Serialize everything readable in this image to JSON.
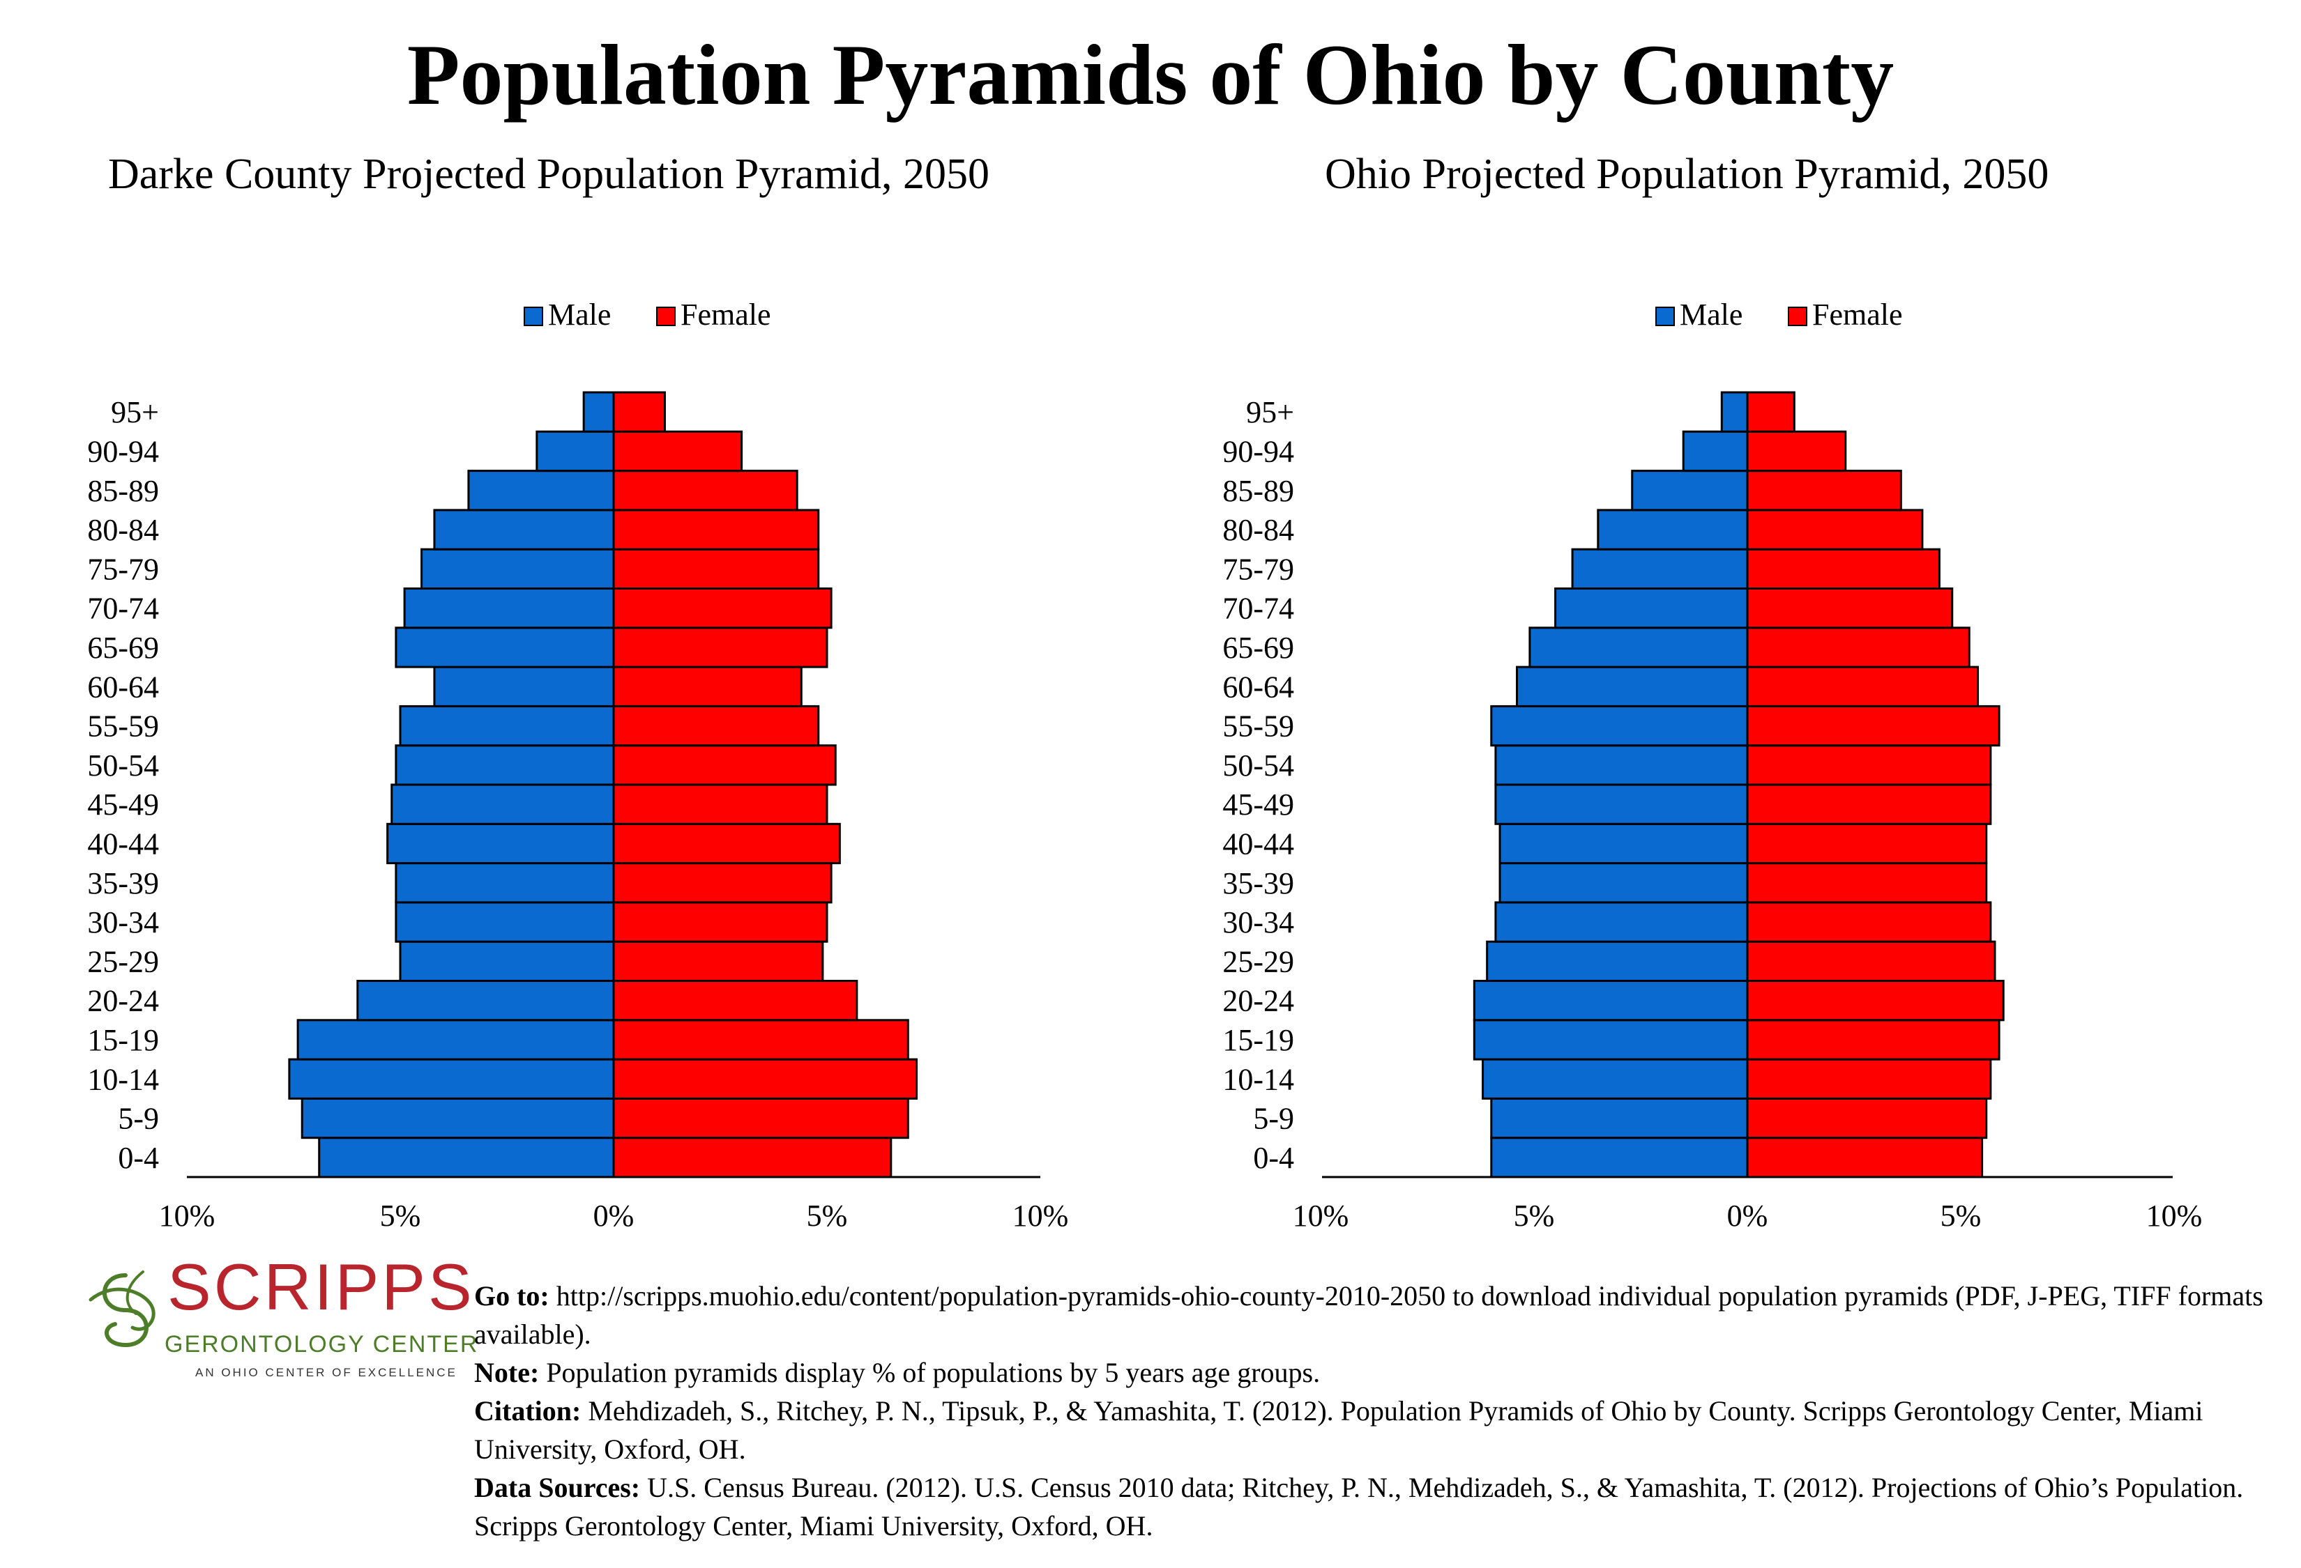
{
  "main_title": "Population Pyramids of Ohio by County",
  "colors": {
    "male": "#0a6ad0",
    "female": "#ff0000"
  },
  "chart_data": [
    {
      "type": "bar",
      "orientation": "horizontal-pyramid",
      "title": "Darke County Projected Population Pyramid, 2050",
      "categories": [
        "0-4",
        "5-9",
        "10-14",
        "15-19",
        "20-24",
        "25-29",
        "30-34",
        "35-39",
        "40-44",
        "45-49",
        "50-54",
        "55-59",
        "60-64",
        "65-69",
        "70-74",
        "75-79",
        "80-84",
        "85-89",
        "90-94",
        "95+"
      ],
      "series": [
        {
          "name": "Male",
          "values": [
            6.9,
            7.3,
            7.6,
            7.4,
            6.0,
            5.0,
            5.1,
            5.1,
            5.3,
            5.2,
            5.1,
            5.0,
            4.2,
            5.1,
            4.9,
            4.5,
            4.2,
            3.4,
            1.8,
            0.7
          ]
        },
        {
          "name": "Female",
          "values": [
            6.5,
            6.9,
            7.1,
            6.9,
            5.7,
            4.9,
            5.0,
            5.1,
            5.3,
            5.0,
            5.2,
            4.8,
            4.4,
            5.0,
            5.1,
            4.8,
            4.8,
            4.3,
            3.0,
            1.2
          ]
        }
      ],
      "xlim": [
        -10,
        10
      ],
      "x_ticks": [
        "10%",
        "5%",
        "0%",
        "5%",
        "10%"
      ],
      "legend": "top-center",
      "grid": false
    },
    {
      "type": "bar",
      "orientation": "horizontal-pyramid",
      "title": "Ohio Projected Population Pyramid, 2050",
      "categories": [
        "0-4",
        "5-9",
        "10-14",
        "15-19",
        "20-24",
        "25-29",
        "30-34",
        "35-39",
        "40-44",
        "45-49",
        "50-54",
        "55-59",
        "60-64",
        "65-69",
        "70-74",
        "75-79",
        "80-84",
        "85-89",
        "90-94",
        "95+"
      ],
      "series": [
        {
          "name": "Male",
          "values": [
            6.0,
            6.0,
            6.2,
            6.4,
            6.4,
            6.1,
            5.9,
            5.8,
            5.8,
            5.9,
            5.9,
            6.0,
            5.4,
            5.1,
            4.5,
            4.1,
            3.5,
            2.7,
            1.5,
            0.6
          ]
        },
        {
          "name": "Female",
          "values": [
            5.5,
            5.6,
            5.7,
            5.9,
            6.0,
            5.8,
            5.7,
            5.6,
            5.6,
            5.7,
            5.7,
            5.9,
            5.4,
            5.2,
            4.8,
            4.5,
            4.1,
            3.6,
            2.3,
            1.1
          ]
        }
      ],
      "xlim": [
        -10,
        10
      ],
      "x_ticks": [
        "10%",
        "5%",
        "0%",
        "5%",
        "10%"
      ],
      "legend": "top-center",
      "grid": false
    }
  ],
  "logo": {
    "name": "SCRIPPS",
    "subtitle": "GERONTOLOGY CENTER",
    "tagline": "AN OHIO CENTER OF EXCELLENCE"
  },
  "notes": {
    "goto_label": "Go to:",
    "goto_text": " http://scripps.muohio.edu/content/population-pyramids-ohio-county-2010-2050 to download individual population pyramids (PDF, J-PEG, TIFF formats available).",
    "note_label": "Note:",
    "note_text": " Population pyramids display % of populations by 5 years age groups.",
    "citation_label": "Citation:",
    "citation_text": " Mehdizadeh, S., Ritchey, P. N., Tipsuk, P., & Yamashita, T. (2012). Population Pyramids of Ohio by County. Scripps Gerontology Center, Miami University, Oxford, OH.",
    "sources_label": "Data Sources:",
    "sources_text": " U.S. Census Bureau. (2012). U.S. Census 2010 data; Ritchey, P. N., Mehdizadeh, S., & Yamashita, T. (2012). Projections of Ohio’s Population. Scripps Gerontology Center, Miami University, Oxford, OH."
  }
}
